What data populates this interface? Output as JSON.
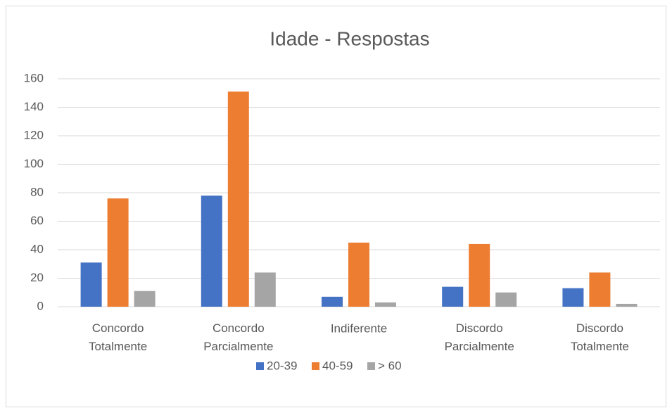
{
  "chart_data": {
    "type": "bar",
    "title": "Idade - Respostas",
    "categories": [
      "Concordo Totalmente",
      "Concordo Parcialmente",
      "Indiferente",
      "Discordo Parcialmente",
      "Discordo Totalmente"
    ],
    "series": [
      {
        "name": "20-39",
        "color": "#4472c4",
        "values": [
          31,
          78,
          7,
          14,
          13
        ]
      },
      {
        "name": "40-59",
        "color": "#ed7d31",
        "values": [
          76,
          151,
          45,
          44,
          24
        ]
      },
      {
        "name": "> 60",
        "color": "#a5a5a5",
        "values": [
          11,
          24,
          3,
          10,
          2
        ]
      }
    ],
    "ylim": [
      0,
      160
    ],
    "yticks": [
      0,
      20,
      40,
      60,
      80,
      100,
      120,
      140,
      160
    ],
    "grid": true,
    "legend": "bottom"
  }
}
